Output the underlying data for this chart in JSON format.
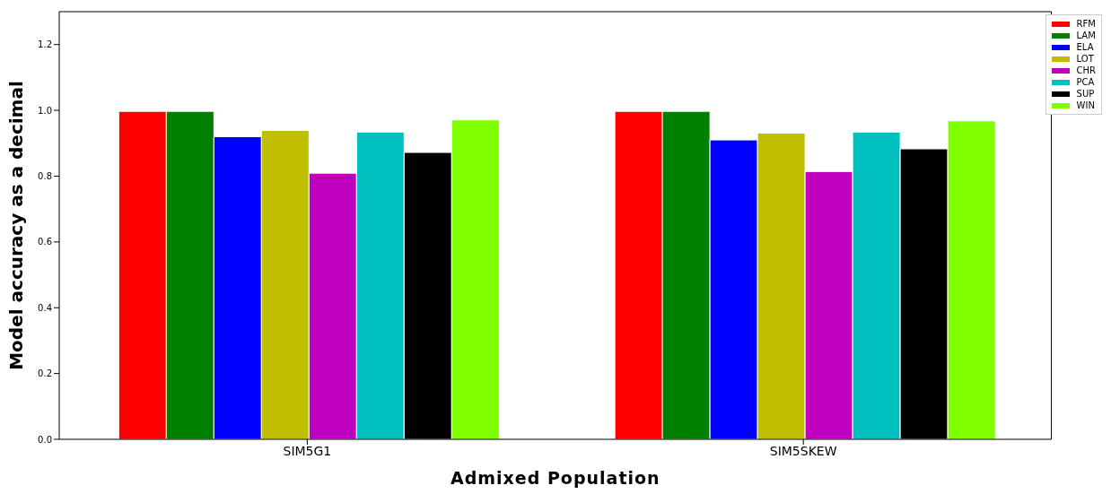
{
  "chart_data": {
    "type": "bar",
    "xlabel": "Admixed Population",
    "ylabel": "Model accuracy as a decimal",
    "categories": [
      "SIM5G1",
      "SIM5SKEW"
    ],
    "series": [
      {
        "name": "RFM",
        "color": "#ff0000",
        "values": [
          0.997,
          0.997
        ]
      },
      {
        "name": "LAM",
        "color": "#008000",
        "values": [
          0.997,
          0.997
        ]
      },
      {
        "name": "ELA",
        "color": "#0000ff",
        "values": [
          0.92,
          0.91
        ]
      },
      {
        "name": "LOT",
        "color": "#bfbf00",
        "values": [
          0.939,
          0.931
        ]
      },
      {
        "name": "CHR",
        "color": "#bf00bf",
        "values": [
          0.809,
          0.814
        ]
      },
      {
        "name": "PCA",
        "color": "#00bfbf",
        "values": [
          0.934,
          0.934
        ]
      },
      {
        "name": "SUP",
        "color": "#000000",
        "values": [
          0.872,
          0.883
        ]
      },
      {
        "name": "WIN",
        "color": "#80ff00",
        "values": [
          0.971,
          0.968
        ]
      }
    ],
    "ylim": [
      0,
      1.3
    ],
    "yticks": [
      {
        "value": 0,
        "label": "0.0"
      },
      0.2,
      0.4,
      0.6,
      0.8,
      {
        "value": 1,
        "label": "1.0"
      },
      1.2
    ],
    "grid": false,
    "legend": "top right"
  }
}
